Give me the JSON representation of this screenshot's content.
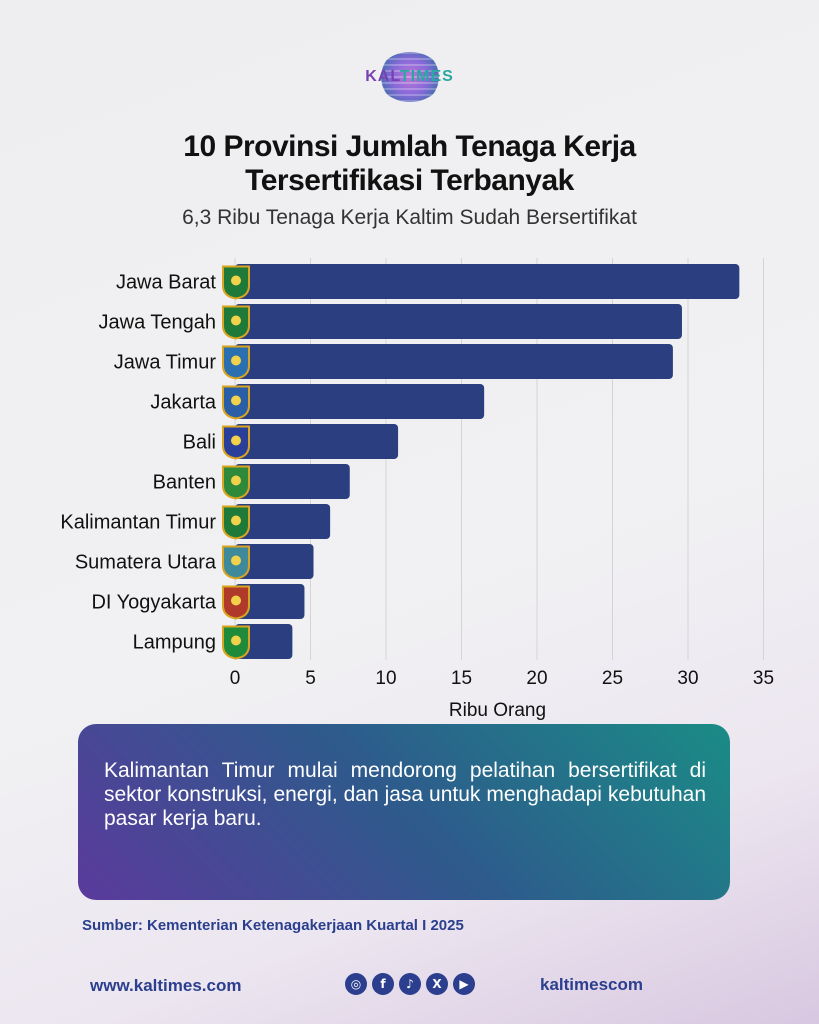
{
  "brand": {
    "logo_part1": "KAL",
    "logo_part2": "TIMES"
  },
  "header": {
    "title_line1": "10 Provinsi Jumlah Tenaga Kerja",
    "title_line2": "Tersertifikasi Terbanyak",
    "subtitle": "6,3 Ribu Tenaga Kerja Kaltim Sudah Bersertifikat"
  },
  "chart_data": {
    "type": "bar",
    "orientation": "horizontal",
    "categories": [
      "Jawa Barat",
      "Jawa Tengah",
      "Jawa Timur",
      "Jakarta",
      "Bali",
      "Banten",
      "Kalimantan Timur",
      "Sumatera Utara",
      "DI Yogyakarta",
      "Lampung"
    ],
    "values": [
      33.4,
      29.6,
      29.0,
      16.5,
      10.8,
      7.6,
      6.3,
      5.2,
      4.6,
      3.8
    ],
    "xlabel": "Ribu Orang",
    "xlim": [
      0,
      35
    ],
    "xticks": [
      0,
      5,
      10,
      15,
      20,
      25,
      30,
      35
    ],
    "bar_color": "#2b3f80",
    "grid": "vertical",
    "emblems": [
      "jawa-barat-emblem",
      "jawa-tengah-emblem",
      "jawa-timur-emblem",
      "jakarta-emblem",
      "bali-emblem",
      "banten-emblem",
      "kalimantan-timur-emblem",
      "sumatera-utara-emblem",
      "di-yogyakarta-emblem",
      "lampung-emblem"
    ],
    "emblem_colors": [
      "#1f7a3a",
      "#1f7a3a",
      "#2a6fb0",
      "#2a5fa8",
      "#2a3f9a",
      "#2e8a3a",
      "#1f7a3a",
      "#3f8a9a",
      "#b03a2a",
      "#1f8a3a"
    ]
  },
  "callout": {
    "text": "Kalimantan Timur mulai mendorong pelatihan bersertifikat di sektor konstruksi, energi, dan jasa untuk menghadapi kebutuhan pasar kerja baru."
  },
  "source": "Sumber: Kementerian Ketenagakerjaan Kuartal I 2025",
  "footer": {
    "website": "www.kaltimes.com",
    "handle": "kaltimescom",
    "social_icons": [
      {
        "name": "instagram-icon",
        "glyph": "◎"
      },
      {
        "name": "facebook-icon",
        "glyph": "f"
      },
      {
        "name": "tiktok-icon",
        "glyph": "♪"
      },
      {
        "name": "x-icon",
        "glyph": "X"
      },
      {
        "name": "youtube-icon",
        "glyph": "▶"
      }
    ]
  }
}
